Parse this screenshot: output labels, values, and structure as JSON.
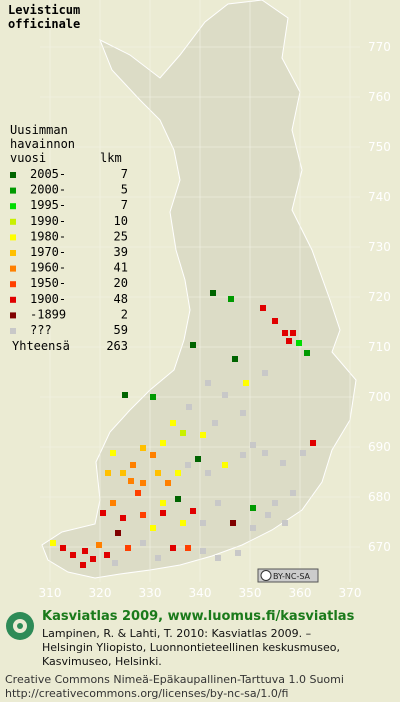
{
  "title": [
    "Levisticum",
    "officinale"
  ],
  "legend": {
    "header": [
      "Uusimman",
      "havainnon",
      "vuosi"
    ],
    "count_header": "lkm",
    "items": [
      {
        "label": "2005-",
        "count": 7,
        "color": "#006400"
      },
      {
        "label": "2000-",
        "count": 5,
        "color": "#009a00"
      },
      {
        "label": "1995-",
        "count": 7,
        "color": "#00dc00"
      },
      {
        "label": "1990-",
        "count": 10,
        "color": "#c8f000"
      },
      {
        "label": "1980-",
        "count": 25,
        "color": "#ffff00"
      },
      {
        "label": "1970-",
        "count": 39,
        "color": "#ffc000"
      },
      {
        "label": "1960-",
        "count": 41,
        "color": "#ff8000"
      },
      {
        "label": "1950-",
        "count": 20,
        "color": "#ff4000"
      },
      {
        "label": "1900-",
        "count": 48,
        "color": "#e00000"
      },
      {
        "label": "-1899",
        "count": 2,
        "color": "#800000"
      },
      {
        "label": "???",
        "count": 59,
        "color": "#c8c8c8"
      }
    ],
    "total_label": "Yhteensä",
    "total": 263
  },
  "grid": {
    "northing": [
      770,
      760,
      750,
      740,
      730,
      720,
      710,
      700,
      690,
      680,
      670
    ],
    "easting": [
      310,
      320,
      330,
      340,
      350,
      360,
      370
    ]
  },
  "license_badge": "BY-NC-SA",
  "footer": {
    "heading": "Kasviatlas 2009, www.luomus.fi/kasviatlas",
    "citation": [
      "Lampinen, R. & Lahti, T. 2010: Kasviatlas 2009. –",
      "Helsingin Yliopisto, Luonnontieteellinen keskusmuseo,",
      "Kasvimuseo, Helsinki."
    ],
    "license": [
      "Creative Commons Nimeä-Epäkaupallinen-Tarttuva 1.0 Suomi",
      "http://creativecommons.org/licenses/by-nc-sa/1.0/fi"
    ]
  }
}
